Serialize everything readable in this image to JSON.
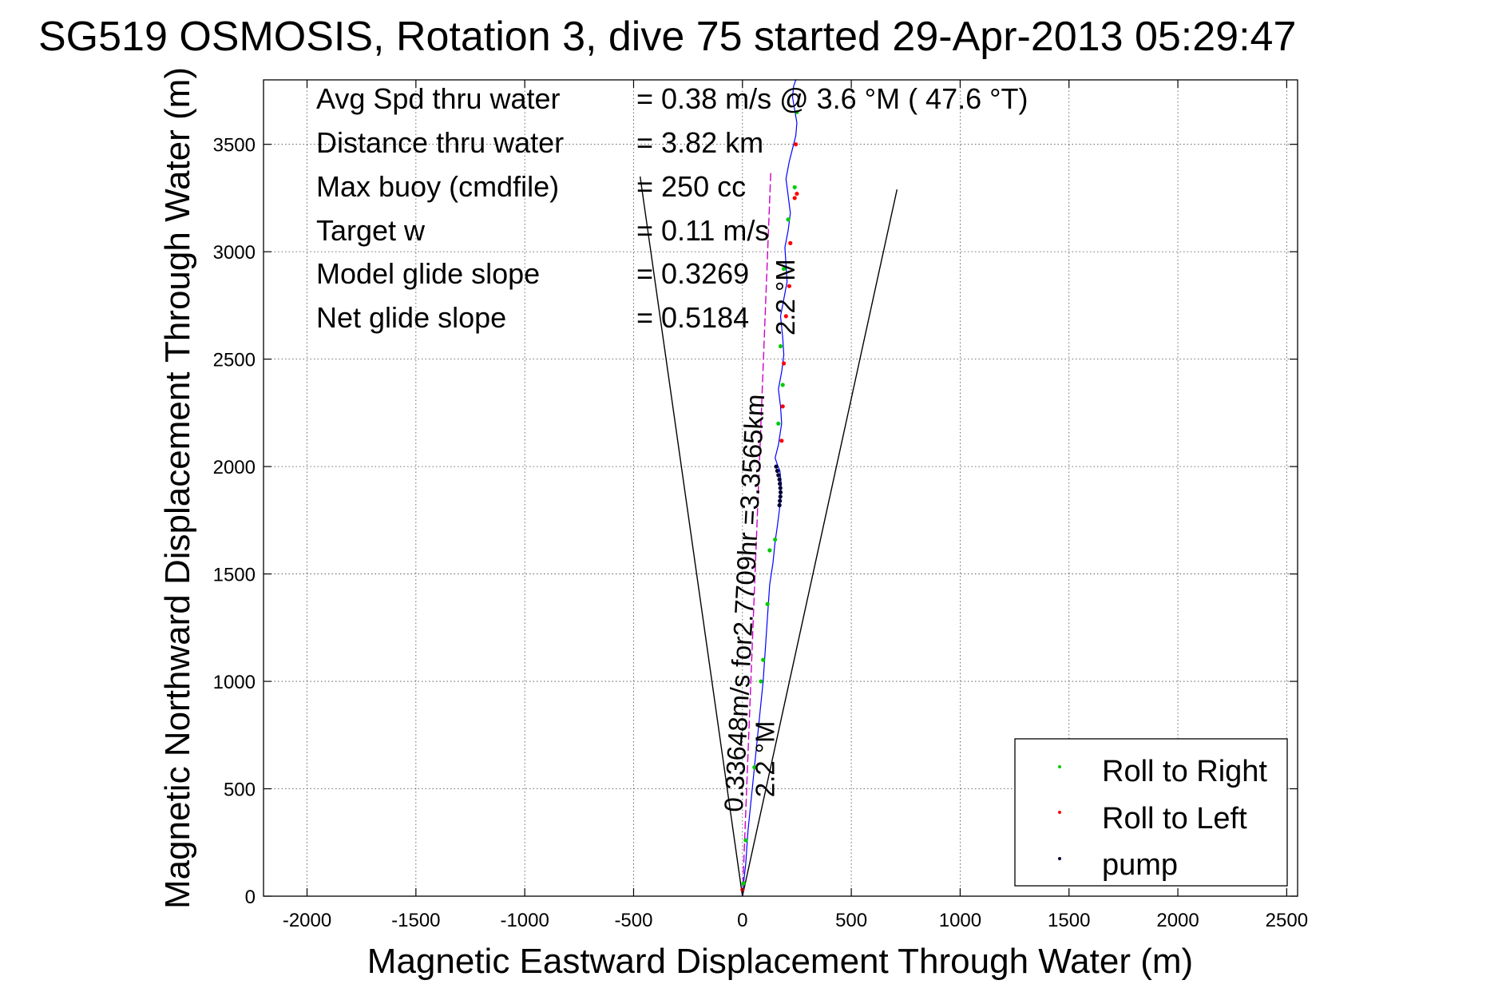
{
  "chart_data": {
    "type": "scatter",
    "title": "SG519 OSMOSIS, Rotation 3, dive 75 started 29-Apr-2013 05:29:47",
    "xlabel": "Magnetic Eastward Displacement Through Water (m)",
    "ylabel": "Magnetic Northward Displacement Through Water (m)",
    "xlim": [
      -2200,
      2550
    ],
    "ylim": [
      0,
      3800
    ],
    "xticks": [
      -2000,
      -1500,
      -1000,
      -500,
      0,
      500,
      1000,
      1500,
      2000,
      2500
    ],
    "yticks": [
      0,
      500,
      1000,
      1500,
      2000,
      2500,
      3000,
      3500
    ],
    "grid": true,
    "legend_position": "bottom-right",
    "stats": [
      {
        "label": "Avg Spd thru water",
        "value": "=  0.38 m/s @   3.6 °M ( 47.6 °T)"
      },
      {
        "label": "Distance thru water",
        "value": "=  3.82 km"
      },
      {
        "label": "Max buoy (cmdfile)",
        "value": "= 250 cc"
      },
      {
        "label": "Target w",
        "value": "= 0.11 m/s"
      },
      {
        "label": "Model glide slope",
        "value": "= 0.3269"
      },
      {
        "label": "Net glide slope",
        "value": "= 0.5184"
      }
    ],
    "annotations": [
      {
        "text": "0.33648m/s for2.7709hr =3.3565km",
        "x": 0,
        "y": 390,
        "angle": -87
      },
      {
        "text": "2.2 °M",
        "x": 145,
        "y": 460,
        "angle": -90
      },
      {
        "text": "2.2 °M",
        "x": 240,
        "y": 2610,
        "angle": -90
      }
    ],
    "reference_lines": [
      {
        "name": "glide cone left",
        "x": [
          0,
          -470
        ],
        "y": [
          0,
          3350
        ],
        "color": "#000000"
      },
      {
        "name": "glide cone right",
        "x": [
          0,
          710
        ],
        "y": [
          0,
          3290
        ],
        "color": "#000000"
      },
      {
        "name": "heading line",
        "x": [
          0,
          130
        ],
        "y": [
          0,
          3370
        ],
        "color": "#cc00cc"
      }
    ],
    "track": {
      "color": "#0000ff",
      "x": [
        0,
        5,
        15,
        25,
        40,
        55,
        70,
        85,
        95,
        105,
        115,
        125,
        140,
        150,
        160,
        170,
        175,
        178,
        172,
        160,
        150,
        165,
        180,
        175,
        165,
        180,
        190,
        185,
        175,
        190,
        205,
        200,
        195,
        210,
        220,
        210,
        200,
        215,
        230,
        245,
        250,
        240,
        230,
        235,
        245,
        240
      ],
      "y": [
        0,
        60,
        150,
        300,
        450,
        600,
        750,
        900,
        1000,
        1150,
        1300,
        1450,
        1550,
        1650,
        1720,
        1800,
        1860,
        1920,
        1980,
        2010,
        2040,
        2100,
        2200,
        2280,
        2360,
        2440,
        2520,
        2600,
        2700,
        2780,
        2860,
        2940,
        3020,
        3100,
        3180,
        3260,
        3340,
        3420,
        3480,
        3540,
        3600,
        3660,
        3720,
        3770,
        3800,
        3800
      ]
    },
    "series": [
      {
        "name": "Roll to Right",
        "color": "#00cc00",
        "x": [
          5,
          15,
          55,
          85,
          95,
          115,
          125,
          150,
          165,
          185,
          175,
          190,
          210,
          240,
          250
        ],
        "y": [
          60,
          260,
          600,
          1000,
          1100,
          1360,
          1610,
          1660,
          2200,
          2380,
          2560,
          2920,
          3150,
          3300,
          3650
        ]
      },
      {
        "name": "Roll to Left",
        "color": "#ff0000",
        "x": [
          0,
          180,
          185,
          190,
          200,
          215,
          220,
          240,
          250,
          245
        ],
        "y": [
          30,
          2120,
          2280,
          2480,
          2700,
          2840,
          3040,
          3250,
          3270,
          3500
        ]
      },
      {
        "name": "pump",
        "color": "#000033",
        "x": [
          155,
          160,
          165,
          170,
          172,
          174,
          175,
          174,
          172,
          170
        ],
        "y": [
          2000,
          1980,
          1960,
          1940,
          1920,
          1900,
          1880,
          1860,
          1840,
          1820
        ]
      }
    ]
  }
}
